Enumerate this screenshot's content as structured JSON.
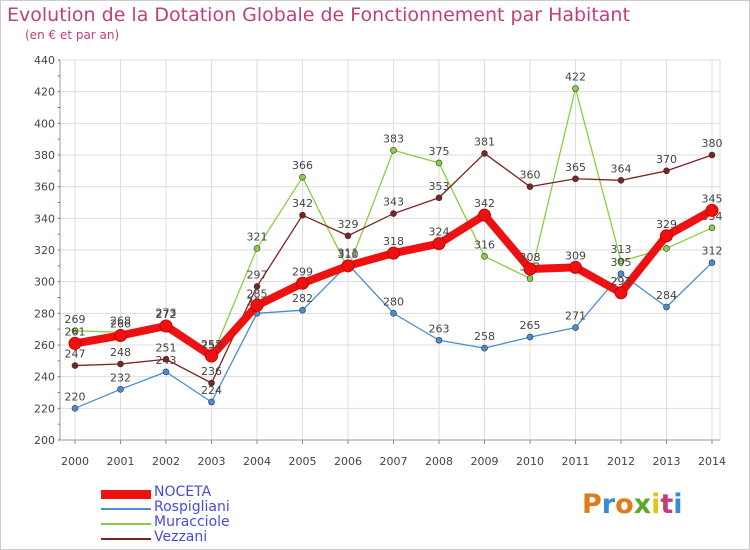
{
  "title": "Evolution de la Dotation Globale de Fonctionnement par Habitant",
  "subtitle": "(en € et par an)",
  "brand": {
    "text": "Proxiti",
    "letter_colors": [
      "#e07a1a",
      "#3a8ad6",
      "#e07a1a",
      "#5aaa2a",
      "#e0c41a",
      "#c0407a",
      "#3a8ad6"
    ]
  },
  "chart_data": {
    "type": "line",
    "x": [
      "2000",
      "2001",
      "2002",
      "2003",
      "2004",
      "2005",
      "2006",
      "2007",
      "2008",
      "2009",
      "2010",
      "2011",
      "2012",
      "2013",
      "2014"
    ],
    "ylim": [
      200,
      440
    ],
    "yticks": [
      "200",
      "220",
      "240",
      "260",
      "280",
      "300",
      "320",
      "340",
      "360",
      "380",
      "400",
      "420",
      "440"
    ],
    "grid": true,
    "legend_position": "bottom-left",
    "series": [
      {
        "name": "Muracciole",
        "color": "#88d040",
        "values": [
          269,
          268,
          273,
          252,
          321,
          366,
          308,
          383,
          375,
          316,
          302,
          422,
          313,
          321,
          334
        ],
        "labels": [
          "269",
          "268",
          "273",
          "252",
          "321",
          "366",
          "",
          "383",
          "375",
          "316",
          "302",
          "422",
          "313",
          "",
          "334"
        ]
      },
      {
        "name": "Rospigliani",
        "color": "#4a8ed0",
        "values": [
          220,
          232,
          243,
          224,
          280,
          282,
          311,
          280,
          263,
          258,
          265,
          271,
          305,
          284,
          312
        ],
        "labels": [
          "220",
          "232",
          "243",
          "224",
          "280",
          "282",
          "311",
          "280",
          "263",
          "258",
          "265",
          "271",
          "305",
          "284",
          "312"
        ]
      },
      {
        "name": "Vezzani",
        "color": "#7a2424",
        "values": [
          247,
          248,
          251,
          236,
          297,
          342,
          329,
          343,
          353,
          381,
          360,
          365,
          364,
          370,
          380
        ],
        "labels": [
          "247",
          "248",
          "251",
          "236",
          "297",
          "342",
          "329",
          "343",
          "353",
          "381",
          "360",
          "365",
          "364",
          "370",
          "380"
        ]
      },
      {
        "name": "NOCETA",
        "color": "#ee1111",
        "values": [
          261,
          266,
          272,
          253,
          285,
          299,
          310,
          318,
          324,
          342,
          308,
          309,
          293,
          329,
          345
        ],
        "labels": [
          "261",
          "266",
          "272",
          "253",
          "285",
          "299",
          "310",
          "318",
          "324",
          "342",
          "308",
          "309",
          "293",
          "329",
          "345"
        ]
      }
    ],
    "legend_order": [
      "NOCETA",
      "Rospigliani",
      "Muracciole",
      "Vezzani"
    ]
  }
}
